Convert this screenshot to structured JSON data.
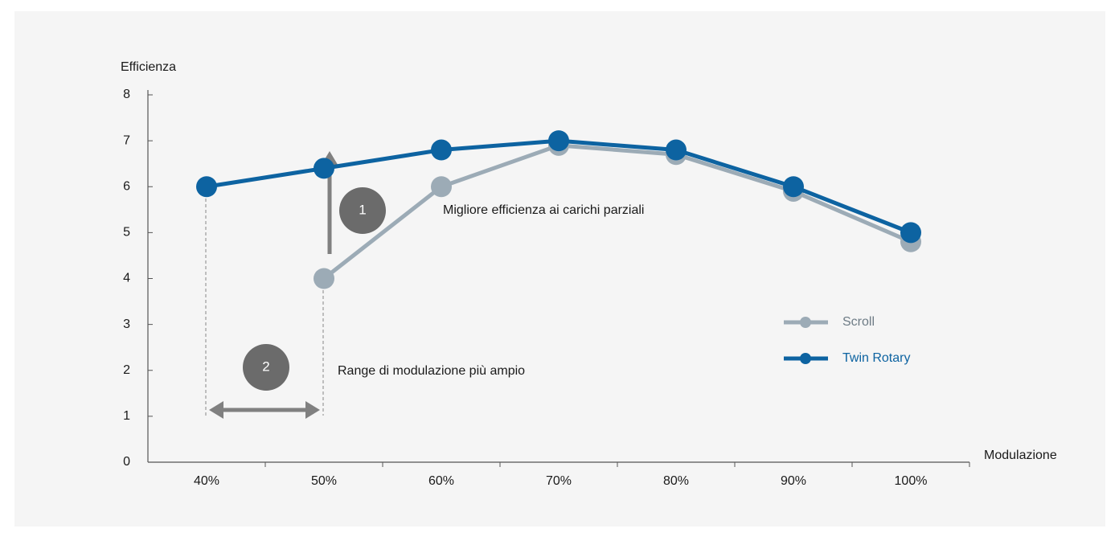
{
  "chart_data": {
    "type": "line",
    "y_label": "Efficienza",
    "x_label": "Modulazione",
    "categories": [
      "40%",
      "50%",
      "60%",
      "70%",
      "80%",
      "90%",
      "100%"
    ],
    "series": [
      {
        "name": "Scroll",
        "color": "#9cabb6",
        "values": [
          null,
          4,
          6,
          6.9,
          6.7,
          5.9,
          4.8
        ]
      },
      {
        "name": "Twin Rotary",
        "color": "#0d63a1",
        "values": [
          6,
          6.4,
          6.8,
          7,
          6.8,
          6,
          5
        ]
      }
    ],
    "ylim": [
      0,
      8
    ],
    "yticks": [
      0,
      1,
      2,
      3,
      4,
      5,
      6,
      7,
      8
    ],
    "legend": "right",
    "annotations": [
      "1",
      "Migliore efficienza ai carichi parziali",
      "2",
      "Range di modulazione più ampio"
    ]
  }
}
